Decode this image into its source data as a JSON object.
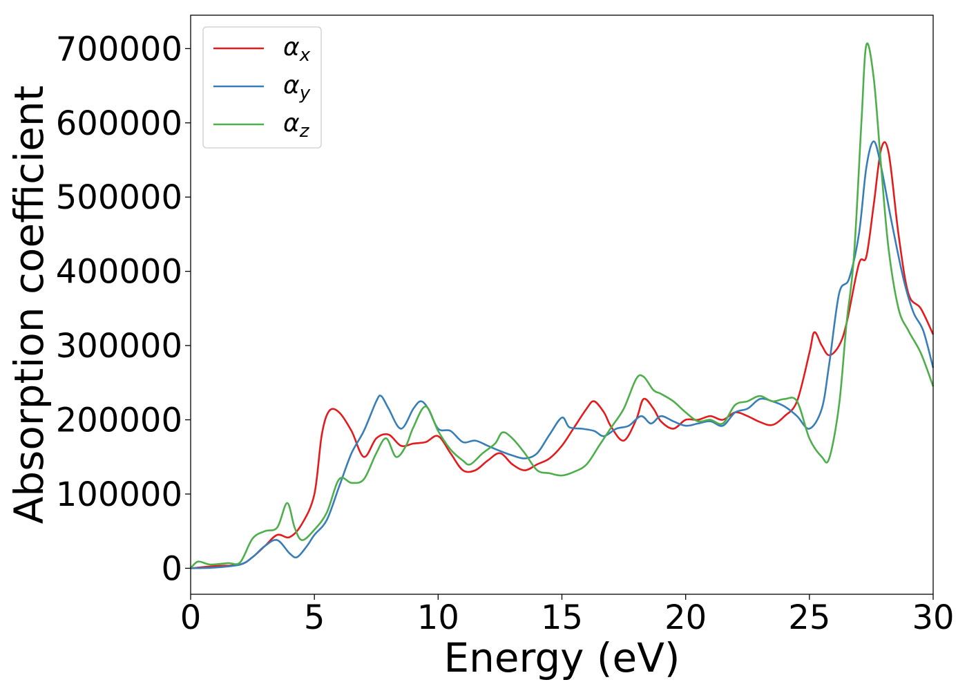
{
  "chart_data": {
    "type": "line",
    "title": "",
    "xlabel": "Energy (eV)",
    "ylabel": "Absorption coefficient",
    "xlim": [
      0,
      30
    ],
    "ylim": [
      -35000,
      745000
    ],
    "xticks": [
      0,
      5,
      10,
      15,
      20,
      25,
      30
    ],
    "xtick_labels": [
      "0",
      "5",
      "10",
      "15",
      "20",
      "25",
      "30"
    ],
    "yticks": [
      0,
      100000,
      200000,
      300000,
      400000,
      500000,
      600000,
      700000
    ],
    "ytick_labels": [
      "0",
      "100000",
      "200000",
      "300000",
      "400000",
      "500000",
      "600000",
      "700000"
    ],
    "grid": false,
    "legend_position": "upper-left",
    "series": [
      {
        "name": "α",
        "subscript": "x",
        "color": "#e41a1c",
        "points": [
          [
            0,
            0
          ],
          [
            1,
            3000
          ],
          [
            2,
            5000
          ],
          [
            2.5,
            15000
          ],
          [
            3,
            30000
          ],
          [
            3.5,
            45000
          ],
          [
            4,
            42000
          ],
          [
            4.5,
            60000
          ],
          [
            5,
            100000
          ],
          [
            5.3,
            180000
          ],
          [
            5.6,
            212000
          ],
          [
            6,
            210000
          ],
          [
            6.5,
            185000
          ],
          [
            7,
            150000
          ],
          [
            7.5,
            175000
          ],
          [
            8,
            180000
          ],
          [
            8.5,
            165000
          ],
          [
            9,
            168000
          ],
          [
            9.5,
            170000
          ],
          [
            10,
            178000
          ],
          [
            10.5,
            155000
          ],
          [
            11,
            132000
          ],
          [
            11.5,
            132000
          ],
          [
            12,
            145000
          ],
          [
            12.5,
            155000
          ],
          [
            13,
            140000
          ],
          [
            13.5,
            132000
          ],
          [
            14,
            140000
          ],
          [
            14.5,
            148000
          ],
          [
            15,
            165000
          ],
          [
            15.5,
            190000
          ],
          [
            16,
            215000
          ],
          [
            16.3,
            225000
          ],
          [
            16.7,
            210000
          ],
          [
            17,
            190000
          ],
          [
            17.5,
            172000
          ],
          [
            18,
            200000
          ],
          [
            18.3,
            228000
          ],
          [
            18.7,
            215000
          ],
          [
            19,
            198000
          ],
          [
            19.5,
            188000
          ],
          [
            20,
            200000
          ],
          [
            20.5,
            200000
          ],
          [
            21,
            205000
          ],
          [
            21.5,
            200000
          ],
          [
            22,
            210000
          ],
          [
            22.5,
            205000
          ],
          [
            23,
            197000
          ],
          [
            23.5,
            193000
          ],
          [
            24,
            205000
          ],
          [
            24.5,
            225000
          ],
          [
            25,
            290000
          ],
          [
            25.2,
            318000
          ],
          [
            25.5,
            300000
          ],
          [
            25.8,
            287000
          ],
          [
            26.2,
            300000
          ],
          [
            26.5,
            330000
          ],
          [
            27,
            410000
          ],
          [
            27.3,
            420000
          ],
          [
            27.6,
            490000
          ],
          [
            27.9,
            565000
          ],
          [
            28.2,
            560000
          ],
          [
            28.6,
            450000
          ],
          [
            29,
            370000
          ],
          [
            29.5,
            350000
          ],
          [
            30,
            315000
          ]
        ]
      },
      {
        "name": "α",
        "subscript": "y",
        "color": "#377eb8",
        "points": [
          [
            0,
            0
          ],
          [
            1,
            1000
          ],
          [
            2,
            5000
          ],
          [
            2.5,
            15000
          ],
          [
            3,
            30000
          ],
          [
            3.5,
            38000
          ],
          [
            4,
            20000
          ],
          [
            4.3,
            15000
          ],
          [
            4.7,
            30000
          ],
          [
            5,
            45000
          ],
          [
            5.5,
            65000
          ],
          [
            6,
            110000
          ],
          [
            6.5,
            155000
          ],
          [
            7,
            185000
          ],
          [
            7.5,
            225000
          ],
          [
            7.7,
            232000
          ],
          [
            8,
            215000
          ],
          [
            8.5,
            188000
          ],
          [
            9,
            215000
          ],
          [
            9.3,
            225000
          ],
          [
            9.6,
            215000
          ],
          [
            10,
            188000
          ],
          [
            10.5,
            185000
          ],
          [
            11,
            170000
          ],
          [
            11.5,
            172000
          ],
          [
            12,
            165000
          ],
          [
            12.5,
            158000
          ],
          [
            13,
            152000
          ],
          [
            13.5,
            148000
          ],
          [
            14,
            155000
          ],
          [
            14.5,
            180000
          ],
          [
            15,
            203000
          ],
          [
            15.3,
            190000
          ],
          [
            15.8,
            188000
          ],
          [
            16.3,
            185000
          ],
          [
            16.7,
            178000
          ],
          [
            17.2,
            188000
          ],
          [
            17.7,
            192000
          ],
          [
            18.2,
            205000
          ],
          [
            18.6,
            195000
          ],
          [
            19,
            205000
          ],
          [
            19.5,
            198000
          ],
          [
            20,
            192000
          ],
          [
            20.5,
            195000
          ],
          [
            21,
            198000
          ],
          [
            21.5,
            192000
          ],
          [
            22,
            210000
          ],
          [
            22.5,
            215000
          ],
          [
            23,
            228000
          ],
          [
            23.5,
            225000
          ],
          [
            24,
            218000
          ],
          [
            24.5,
            205000
          ],
          [
            25,
            188000
          ],
          [
            25.5,
            215000
          ],
          [
            25.8,
            275000
          ],
          [
            26.2,
            370000
          ],
          [
            26.6,
            390000
          ],
          [
            27,
            450000
          ],
          [
            27.3,
            540000
          ],
          [
            27.6,
            575000
          ],
          [
            27.9,
            540000
          ],
          [
            28.3,
            470000
          ],
          [
            28.8,
            390000
          ],
          [
            29.2,
            345000
          ],
          [
            29.6,
            320000
          ],
          [
            30,
            270000
          ]
        ]
      },
      {
        "name": "α",
        "subscript": "z",
        "color": "#4daf4a",
        "points": [
          [
            0,
            0
          ],
          [
            0.3,
            9000
          ],
          [
            0.8,
            5000
          ],
          [
            1.5,
            7000
          ],
          [
            2,
            8000
          ],
          [
            2.5,
            40000
          ],
          [
            3,
            50000
          ],
          [
            3.5,
            55000
          ],
          [
            3.9,
            88000
          ],
          [
            4.2,
            55000
          ],
          [
            4.5,
            38000
          ],
          [
            5,
            52000
          ],
          [
            5.5,
            75000
          ],
          [
            6,
            120000
          ],
          [
            6.5,
            115000
          ],
          [
            7,
            120000
          ],
          [
            7.5,
            155000
          ],
          [
            7.9,
            175000
          ],
          [
            8.3,
            150000
          ],
          [
            8.7,
            165000
          ],
          [
            9,
            190000
          ],
          [
            9.5,
            218000
          ],
          [
            10,
            185000
          ],
          [
            10.5,
            160000
          ],
          [
            11,
            145000
          ],
          [
            11.3,
            140000
          ],
          [
            11.8,
            155000
          ],
          [
            12.3,
            168000
          ],
          [
            12.6,
            183000
          ],
          [
            13,
            175000
          ],
          [
            13.5,
            155000
          ],
          [
            14,
            132000
          ],
          [
            14.5,
            128000
          ],
          [
            15,
            125000
          ],
          [
            15.5,
            130000
          ],
          [
            16,
            140000
          ],
          [
            16.5,
            165000
          ],
          [
            17,
            190000
          ],
          [
            17.5,
            215000
          ],
          [
            18,
            255000
          ],
          [
            18.3,
            258000
          ],
          [
            18.7,
            240000
          ],
          [
            19,
            235000
          ],
          [
            19.5,
            225000
          ],
          [
            20,
            210000
          ],
          [
            20.5,
            198000
          ],
          [
            21,
            200000
          ],
          [
            21.5,
            195000
          ],
          [
            22,
            220000
          ],
          [
            22.5,
            225000
          ],
          [
            23,
            232000
          ],
          [
            23.5,
            225000
          ],
          [
            24,
            228000
          ],
          [
            24.5,
            225000
          ],
          [
            25,
            175000
          ],
          [
            25.5,
            150000
          ],
          [
            25.8,
            148000
          ],
          [
            26.2,
            220000
          ],
          [
            26.5,
            330000
          ],
          [
            26.8,
            420000
          ],
          [
            27.1,
            600000
          ],
          [
            27.3,
            705000
          ],
          [
            27.6,
            660000
          ],
          [
            27.9,
            540000
          ],
          [
            28.2,
            430000
          ],
          [
            28.6,
            350000
          ],
          [
            29,
            320000
          ],
          [
            29.5,
            290000
          ],
          [
            30,
            245000
          ]
        ]
      }
    ]
  }
}
